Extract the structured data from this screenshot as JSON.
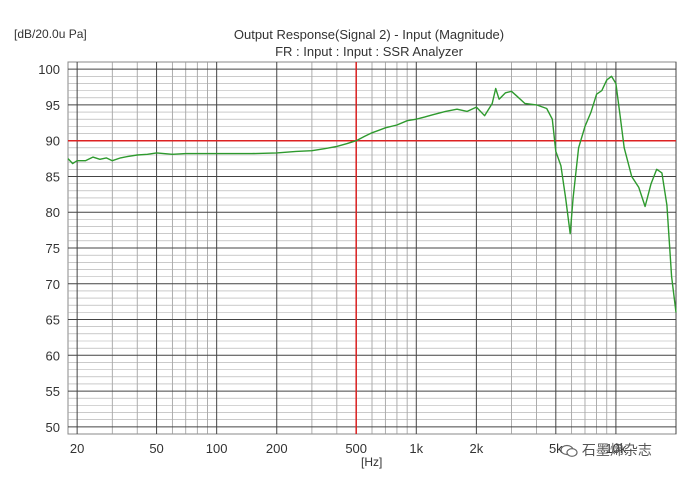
{
  "chart_data": {
    "type": "line",
    "title": "Output Response(Signal 2) - Input (Magnitude)",
    "subtitle": "FR : Input : Input : SSR Analyzer",
    "ylabel": "[dB/20.0u Pa]",
    "xlabel": "[Hz]",
    "xscale": "log",
    "xlim": [
      18,
      20000
    ],
    "ylim": [
      49,
      101
    ],
    "x_ticks": [
      {
        "value": 20,
        "label": "20"
      },
      {
        "value": 50,
        "label": "50"
      },
      {
        "value": 100,
        "label": "100"
      },
      {
        "value": 200,
        "label": "200"
      },
      {
        "value": 500,
        "label": "500"
      },
      {
        "value": 1000,
        "label": "1k"
      },
      {
        "value": 2000,
        "label": "2k"
      },
      {
        "value": 5000,
        "label": "5k"
      },
      {
        "value": 10000,
        "label": "10k"
      }
    ],
    "y_ticks": [
      100,
      95,
      90,
      85,
      80,
      75,
      70,
      65,
      60,
      55,
      50
    ],
    "grid": true,
    "reference_lines": {
      "x": 500,
      "y": 90,
      "color": "#dd2222"
    },
    "series": [
      {
        "color": "#2e9a2e",
        "x": [
          18,
          19,
          20,
          22,
          24,
          26,
          28,
          30,
          33,
          36,
          40,
          45,
          50,
          60,
          70,
          80,
          100,
          120,
          150,
          200,
          250,
          300,
          350,
          400,
          450,
          500,
          550,
          600,
          700,
          800,
          900,
          1000,
          1100,
          1200,
          1400,
          1600,
          1800,
          2000,
          2200,
          2400,
          2500,
          2600,
          2800,
          3000,
          3200,
          3500,
          4000,
          4500,
          4800,
          5000,
          5300,
          5600,
          5900,
          6100,
          6500,
          7000,
          7500,
          8000,
          8500,
          9000,
          9500,
          10000,
          10500,
          11000,
          12000,
          13000,
          14000,
          15000,
          16000,
          17000,
          18000,
          19000,
          20000
        ],
        "y": [
          87.5,
          86.8,
          87.2,
          87.2,
          87.7,
          87.4,
          87.6,
          87.2,
          87.6,
          87.8,
          88.0,
          88.1,
          88.3,
          88.1,
          88.2,
          88.2,
          88.2,
          88.2,
          88.2,
          88.3,
          88.5,
          88.6,
          88.9,
          89.2,
          89.6,
          90.0,
          90.6,
          91.1,
          91.8,
          92.2,
          92.8,
          93.0,
          93.3,
          93.6,
          94.1,
          94.4,
          94.1,
          94.7,
          93.5,
          95.2,
          97.3,
          95.8,
          96.7,
          96.9,
          96.2,
          95.2,
          95.0,
          94.5,
          93.0,
          88.5,
          86.5,
          82.0,
          77.0,
          82.0,
          89.0,
          92.0,
          94.0,
          96.5,
          97.0,
          98.5,
          99.0,
          98.0,
          93.5,
          89.0,
          85.0,
          83.5,
          80.8,
          84.0,
          86.0,
          85.5,
          81.0,
          71.0,
          66.0
        ]
      }
    ]
  },
  "watermark": {
    "text": "石墨烯杂志"
  }
}
